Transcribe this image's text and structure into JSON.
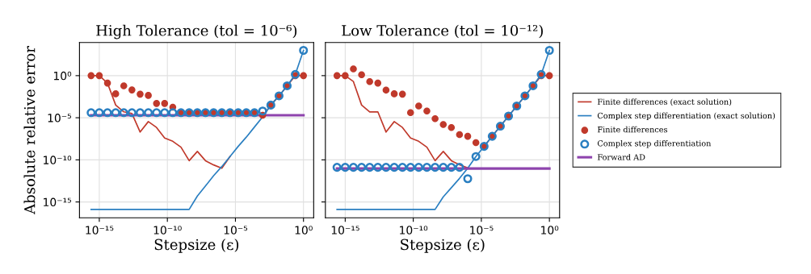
{
  "chart_data": [
    {
      "type": "line",
      "title": "High Tolerance (tol = 10⁻⁶)",
      "xlabel": "Stepsize (ε)",
      "ylabel": "Absolute relative error",
      "log": "xy",
      "grid": true,
      "legend": "right",
      "xlim": [
        3.5e-17,
        5.6
      ],
      "ylim": [
        1.3e-17,
        8700
      ],
      "xticks": [
        {
          "value": 1e-15,
          "label": "10⁻¹⁵"
        },
        {
          "value": 1e-10,
          "label": "10⁻¹⁰"
        },
        {
          "value": 1e-05,
          "label": "10⁻⁵"
        },
        {
          "value": 1,
          "label": "10⁰"
        }
      ],
      "yticks": [
        {
          "value": 1e-15,
          "label": "10⁻¹⁵"
        },
        {
          "value": 1e-10,
          "label": "10⁻¹⁰"
        },
        {
          "value": 1e-05,
          "label": "10⁻⁵"
        },
        {
          "value": 1,
          "label": "10⁰"
        }
      ],
      "x": [
        2.5e-16,
        1e-15,
        4e-15,
        1.6e-14,
        6.3e-14,
        2.5e-13,
        1e-12,
        4e-12,
        1.6e-11,
        6.3e-11,
        2.5e-10,
        1e-09,
        4e-09,
        1.6e-08,
        6.3e-08,
        2.5e-07,
        1e-06,
        4e-06,
        1.6e-05,
        6.3e-05,
        0.00025,
        0.001,
        0.004,
        0.016,
        0.063,
        0.25,
        1
      ],
      "series": [
        {
          "name": "Finite differences (exact solution)",
          "color": "#c0392b",
          "values": [
            1,
            1,
            0.13,
            0.00032,
            5e-05,
            3.2e-05,
            2e-07,
            3.5e-06,
            7e-07,
            4e-08,
            1.6e-08,
            3.2e-09,
            7.9e-11,
            1e-09,
            7.9e-11,
            2.5e-11,
            1e-11,
            2.5e-10,
            null,
            null,
            null,
            1.3e-05,
            0.00032,
            0.004,
            0.063,
            1,
            1
          ]
        },
        {
          "name": "Complex step differentiation (exact solution)",
          "color": "#2a7fc1",
          "values": [
            1.3e-16,
            1.3e-16,
            1.3e-16,
            1.3e-16,
            1.3e-16,
            1.3e-16,
            1.3e-16,
            1.3e-16,
            1.3e-16,
            1.3e-16,
            1.3e-16,
            1.3e-16,
            1.3e-16,
            5e-15,
            7.9e-14,
            1.3e-12,
            1.6e-11,
            2.5e-10,
            4e-09,
            5e-08,
            7.9e-07,
            1.3e-05,
            0.00032,
            0.004,
            0.063,
            1.4,
            1000
          ]
        },
        {
          "name": "Finite differences",
          "type": "scatter",
          "marker": "circle",
          "color": "#c0392b",
          "values": [
            1,
            1,
            0.13,
            0.007,
            0.063,
            0.02,
            0.0063,
            0.0045,
            0.0005,
            0.0005,
            0.00018,
            4e-05,
            4e-05,
            4e-05,
            4e-05,
            4e-05,
            4e-05,
            4e-05,
            4e-05,
            4e-05,
            4e-05,
            2e-05,
            0.00032,
            0.004,
            0.063,
            1,
            1
          ]
        },
        {
          "name": "Complex step differentiation",
          "type": "scatter",
          "marker": "circle",
          "color": "#2a7fc1",
          "values": [
            4e-05,
            4e-05,
            4e-05,
            4e-05,
            4e-05,
            4e-05,
            4e-05,
            4e-05,
            4e-05,
            4e-05,
            4e-05,
            4e-05,
            4e-05,
            4e-05,
            4e-05,
            4e-05,
            4e-05,
            4e-05,
            4e-05,
            4e-05,
            4e-05,
            6.3e-05,
            0.00032,
            0.004,
            0.063,
            1.4,
            1000
          ]
        },
        {
          "name": "Forward AD",
          "color": "#8e44ad",
          "values": [
            2e-05,
            2e-05,
            2e-05,
            2e-05,
            2e-05,
            2e-05,
            2e-05,
            2e-05,
            2e-05,
            2e-05,
            2e-05,
            2e-05,
            2e-05,
            2e-05,
            2e-05,
            2e-05,
            2e-05,
            2e-05,
            2e-05,
            2e-05,
            2e-05,
            2e-05,
            2e-05,
            2e-05,
            2e-05,
            2e-05,
            2e-05
          ]
        }
      ]
    },
    {
      "type": "line",
      "title": "Low Tolerance (tol = 10⁻¹²)",
      "xlabel": "Stepsize (ε)",
      "log": "xy",
      "grid": true,
      "tick_labels": "x",
      "xlim": [
        3.5e-17,
        5.6
      ],
      "ylim": [
        1.3e-17,
        8700
      ],
      "xticks": [
        {
          "value": 1e-15,
          "label": "10⁻¹⁵"
        },
        {
          "value": 1e-10,
          "label": "10⁻¹⁰"
        },
        {
          "value": 1e-05,
          "label": "10⁻⁵"
        },
        {
          "value": 1,
          "label": "10⁰"
        }
      ],
      "yticks": [
        {
          "value": 1e-15,
          "label": null
        },
        {
          "value": 1e-10,
          "label": null
        },
        {
          "value": 1e-05,
          "label": null
        },
        {
          "value": 1,
          "label": null
        }
      ],
      "x": [
        2.5e-16,
        1e-15,
        4e-15,
        1.6e-14,
        6.3e-14,
        2.5e-13,
        1e-12,
        4e-12,
        1.6e-11,
        6.3e-11,
        2.5e-10,
        1e-09,
        4e-09,
        1.6e-08,
        6.3e-08,
        2.5e-07,
        1e-06,
        4e-06,
        1.6e-05,
        6.3e-05,
        0.00025,
        0.001,
        0.004,
        0.016,
        0.063,
        0.25,
        1
      ],
      "series": [
        {
          "color": "#c0392b",
          "values": [
            1,
            1,
            0.2,
            0.00032,
            5e-05,
            5e-05,
            2e-07,
            3.5e-06,
            7e-07,
            4e-08,
            1.6e-08,
            3.2e-09,
            7.9e-11,
            1e-09,
            7.9e-11,
            2.6e-11,
            1.1e-11,
            null,
            4e-09,
            6.3e-08,
            1e-06,
            1.6e-05,
            0.00025,
            0.004,
            0.063,
            1,
            1
          ]
        },
        {
          "color": "#2a7fc1",
          "values": [
            1.3e-16,
            1.3e-16,
            1.3e-16,
            1.3e-16,
            1.3e-16,
            1.3e-16,
            1.3e-16,
            1.3e-16,
            1.3e-16,
            1.3e-16,
            1.3e-16,
            1.3e-16,
            1.3e-16,
            4e-15,
            5e-14,
            6.3e-13,
            1e-11,
            2.5e-10,
            4e-09,
            6.3e-08,
            1e-06,
            1.6e-05,
            0.00025,
            0.004,
            0.063,
            1.4,
            1000
          ]
        },
        {
          "type": "scatter",
          "marker": "circle",
          "color": "#c0392b",
          "values": [
            1,
            1,
            6.3,
            1.26,
            0.2,
            0.13,
            0.019,
            0.007,
            0.0063,
            4e-05,
            0.00025,
            6.3e-05,
            7.9e-06,
            1.6e-06,
            7e-07,
            1e-07,
            6.3e-08,
            1.1e-08,
            4e-09,
            6.3e-08,
            1e-06,
            1.6e-05,
            0.00025,
            0.004,
            0.063,
            1,
            1
          ]
        },
        {
          "type": "scatter",
          "marker": "circle",
          "color": "#2a7fc1",
          "values": [
            1.3e-11,
            1.3e-11,
            1.3e-11,
            1.3e-11,
            1.3e-11,
            1.3e-11,
            1.3e-11,
            1.3e-11,
            1.3e-11,
            1.3e-11,
            1.3e-11,
            1.3e-11,
            1.3e-11,
            1.3e-11,
            1.3e-11,
            1.3e-11,
            5.8e-13,
            2.5e-10,
            4e-09,
            6.3e-08,
            1e-06,
            1.6e-05,
            0.00025,
            0.004,
            0.063,
            1.4,
            1000
          ]
        },
        {
          "color": "#8e44ad",
          "values": [
            9.3e-12,
            9.3e-12,
            9.3e-12,
            9.3e-12,
            9.3e-12,
            9.3e-12,
            9.3e-12,
            9.3e-12,
            9.3e-12,
            9.3e-12,
            9.3e-12,
            9.3e-12,
            9.3e-12,
            9.3e-12,
            9.3e-12,
            9.3e-12,
            9.3e-12,
            9.3e-12,
            9.3e-12,
            9.3e-12,
            9.3e-12,
            9.3e-12,
            9.3e-12,
            9.3e-12,
            9.3e-12,
            9.3e-12,
            9.3e-12
          ]
        }
      ]
    }
  ]
}
